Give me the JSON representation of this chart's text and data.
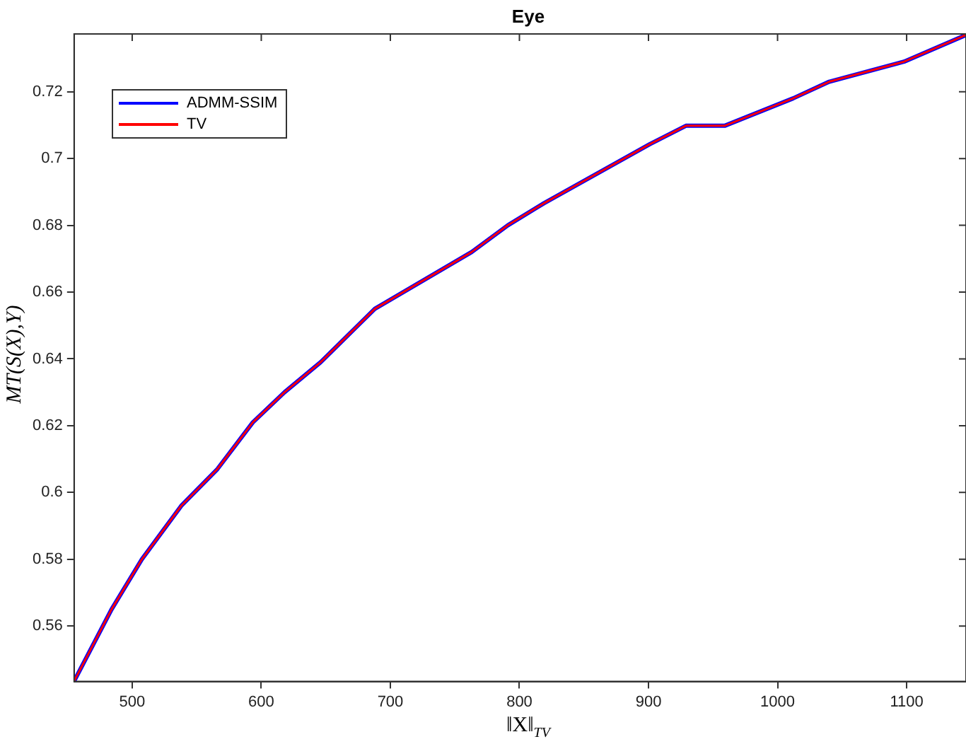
{
  "chart_data": {
    "type": "line",
    "title": "Eye",
    "xlabel": "‖X‖$_{TV}$",
    "ylabel": "MT(S(X),Y)",
    "x": [
      455,
      484,
      507.5,
      538,
      566,
      593.5,
      618,
      646,
      688,
      763,
      791,
      819,
      901,
      929,
      959,
      1012,
      1040,
      1098,
      1146
    ],
    "series": [
      {
        "name": "ADMM-SSIM",
        "color": "#0000ff",
        "values": [
          0.5435,
          0.565,
          0.58,
          0.596,
          0.607,
          0.621,
          0.63,
          0.639,
          0.655,
          0.672,
          0.68,
          0.6866,
          0.7043,
          0.7098,
          0.7098,
          0.718,
          0.723,
          0.729,
          0.737
        ]
      },
      {
        "name": "TV",
        "color": "#ff0000",
        "values": [
          0.5435,
          0.565,
          0.58,
          0.596,
          0.607,
          0.621,
          0.63,
          0.639,
          0.655,
          0.672,
          0.68,
          0.6866,
          0.7043,
          0.7098,
          0.7098,
          0.718,
          0.723,
          0.729,
          0.737
        ]
      }
    ],
    "xlim": [
      455,
      1146
    ],
    "ylim": [
      0.5434,
      0.7373
    ],
    "xticks": [
      500,
      600,
      700,
      800,
      900,
      1000,
      1100
    ],
    "yticks": [
      0.56,
      0.58,
      0.6,
      0.62,
      0.64,
      0.66,
      0.68,
      0.7,
      0.72
    ],
    "grid": false,
    "legend": "top left",
    "marker": "none",
    "line_style": "solid"
  }
}
